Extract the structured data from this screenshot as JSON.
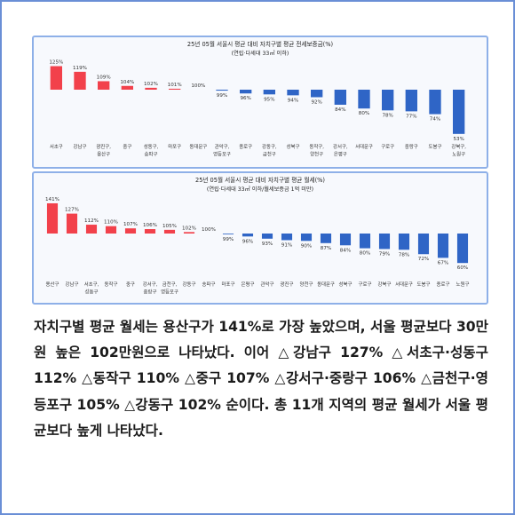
{
  "chart_data": [
    {
      "type": "bar",
      "title": "25년 05월 서울시 평균 대비 자치구별 평균 전세보증금(%)",
      "subtitle": "(연립·다세대 33㎡ 이하)",
      "categories": [
        "서초구",
        "강남구",
        "광진구,\n용산구",
        "중구",
        "성동구,\n송파구",
        "마포구",
        "동대문구",
        "관악구,\n영등포구",
        "종로구",
        "강동구,\n금천구",
        "성북구",
        "동작구,\n양천구",
        "강서구,\n은평구",
        "서대문구",
        "구로구",
        "중랑구",
        "도봉구",
        "강북구,\n노원구"
      ],
      "values": [
        125,
        119,
        109,
        104,
        102,
        101,
        100,
        99,
        96,
        95,
        94,
        92,
        84,
        80,
        78,
        77,
        74,
        53
      ],
      "value_labels": [
        "125%",
        "119%",
        "109%",
        "104%",
        "102%",
        "101%",
        "100%",
        "99%",
        "96%",
        "95%",
        "94%",
        "92%",
        "84%",
        "80%",
        "78%",
        "77%",
        "74%",
        "53%"
      ],
      "baseline": 100,
      "colors": {
        "above": "#f2414b",
        "below": "#2f65c6"
      }
    },
    {
      "type": "bar",
      "title": "25년 05월 서울시 평균 대비 자치구별 평균 월세(%)",
      "subtitle": "(연립·다세대 33㎡ 이하/월세보증금 1억 미만)",
      "categories": [
        "용산구",
        "강남구",
        "서초구,\n성동구",
        "동작구",
        "중구",
        "강서구,\n중랑구",
        "금천구,\n영등포구",
        "강동구",
        "송파구",
        "마포구",
        "은평구",
        "관악구",
        "광진구",
        "양천구",
        "동대문구",
        "성북구",
        "구로구",
        "강북구",
        "서대문구",
        "도봉구",
        "종로구",
        "노원구"
      ],
      "values": [
        141,
        127,
        112,
        110,
        107,
        106,
        105,
        102,
        100,
        99,
        96,
        93,
        91,
        90,
        87,
        84,
        80,
        79,
        78,
        72,
        67,
        60
      ],
      "value_labels": [
        "141%",
        "127%",
        "112%",
        "110%",
        "107%",
        "106%",
        "105%",
        "102%",
        "100%",
        "99%",
        "96%",
        "93%",
        "91%",
        "90%",
        "87%",
        "84%",
        "80%",
        "79%",
        "78%",
        "72%",
        "67%",
        "60%"
      ],
      "baseline": 100,
      "colors": {
        "above": "#f2414b",
        "below": "#2f65c6"
      }
    }
  ],
  "caption": "자치구별 평균 월세는 용산구가 141%로 가장 높았으며, 서울 평균보다 30만원 높은 102만원으로 나타났다. 이어 △강남구 127% △서초구·성동구 112% △동작구 110% △중구 107% △강서구·중랑구 106% △금천구·영등포구 105% △강동구 102% 순이다. 총 11개 지역의 평균 월세가 서울 평균보다 높게 나타났다."
}
